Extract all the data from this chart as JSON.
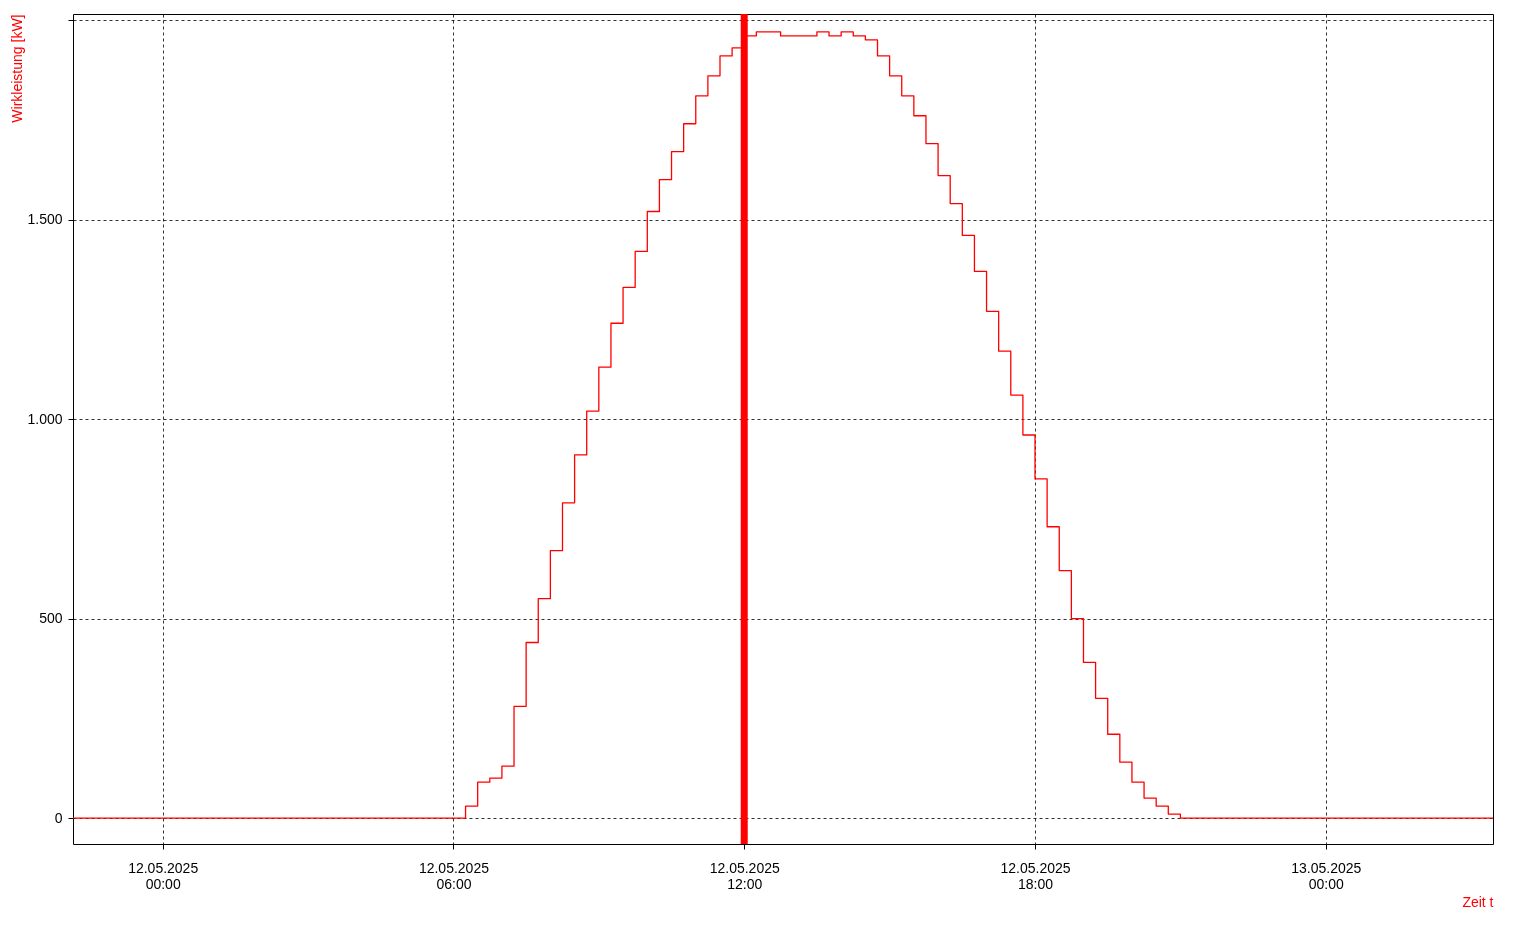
{
  "chart_data": {
    "type": "step",
    "xlabel": "Zeit t",
    "ylabel": "Wirkleistung [kW]",
    "x": [
      "2025-05-11T22:09",
      "2025-05-12T06:15",
      "2025-05-12T06:30",
      "2025-05-12T06:45",
      "2025-05-12T07:00",
      "2025-05-12T07:15",
      "2025-05-12T07:30",
      "2025-05-12T07:45",
      "2025-05-12T08:00",
      "2025-05-12T08:15",
      "2025-05-12T08:30",
      "2025-05-12T08:45",
      "2025-05-12T09:00",
      "2025-05-12T09:15",
      "2025-05-12T09:30",
      "2025-05-12T09:45",
      "2025-05-12T10:00",
      "2025-05-12T10:15",
      "2025-05-12T10:30",
      "2025-05-12T10:45",
      "2025-05-12T11:00",
      "2025-05-12T11:15",
      "2025-05-12T11:30",
      "2025-05-12T11:45",
      "2025-05-12T12:00",
      "2025-05-12T12:15",
      "2025-05-12T12:30",
      "2025-05-12T12:45",
      "2025-05-12T13:00",
      "2025-05-12T13:15",
      "2025-05-12T13:30",
      "2025-05-12T13:45",
      "2025-05-12T14:00",
      "2025-05-12T14:15",
      "2025-05-12T14:30",
      "2025-05-12T14:45",
      "2025-05-12T15:00",
      "2025-05-12T15:15",
      "2025-05-12T15:30",
      "2025-05-12T15:45",
      "2025-05-12T16:00",
      "2025-05-12T16:15",
      "2025-05-12T16:30",
      "2025-05-12T16:45",
      "2025-05-12T17:00",
      "2025-05-12T17:15",
      "2025-05-12T17:30",
      "2025-05-12T17:45",
      "2025-05-12T18:00",
      "2025-05-12T18:15",
      "2025-05-12T18:30",
      "2025-05-12T18:45",
      "2025-05-12T19:00",
      "2025-05-12T19:15",
      "2025-05-12T19:30",
      "2025-05-12T19:45",
      "2025-05-12T20:00",
      "2025-05-12T20:15",
      "2025-05-12T20:30",
      "2025-05-12T20:45",
      "2025-05-12T21:00",
      "2025-05-13T03:27"
    ],
    "series": [
      {
        "color": "#ff0000",
        "values": [
          0,
          30,
          90,
          100,
          130,
          280,
          440,
          550,
          670,
          790,
          910,
          1020,
          1130,
          1240,
          1330,
          1420,
          1520,
          1600,
          1670,
          1740,
          1810,
          1860,
          1910,
          1930,
          1960,
          1970,
          1970,
          1960,
          1960,
          1960,
          1970,
          1960,
          1970,
          1960,
          1950,
          1910,
          1860,
          1810,
          1760,
          1690,
          1610,
          1540,
          1460,
          1370,
          1270,
          1170,
          1060,
          960,
          850,
          730,
          620,
          500,
          390,
          300,
          210,
          140,
          90,
          50,
          30,
          10,
          0,
          0
        ]
      }
    ],
    "xlim": [
      "2025-05-11T22:09",
      "2025-05-13T03:27"
    ],
    "ylim": [
      -65,
      2015
    ],
    "xticks": [
      {
        "value": "2025-05-12T00:00",
        "label": "12.05.2025\n00:00"
      },
      {
        "value": "2025-05-12T06:00",
        "label": "12.05.2025\n06:00"
      },
      {
        "value": "2025-05-12T12:00",
        "label": "12.05.2025\n12:00"
      },
      {
        "value": "2025-05-12T18:00",
        "label": "12.05.2025\n18:00"
      },
      {
        "value": "2025-05-13T00:00",
        "label": "13.05.2025\n00:00"
      }
    ],
    "yticks": [
      0,
      500,
      {
        "value": 1000,
        "label": "1.000"
      },
      {
        "value": 1500,
        "label": "1.500"
      },
      {
        "value": 2000,
        "label": null
      }
    ],
    "grid": true,
    "ref_lines": [
      {
        "axis": "x",
        "value": "2025-05-12T12:00",
        "color": "#ff0000"
      }
    ]
  }
}
